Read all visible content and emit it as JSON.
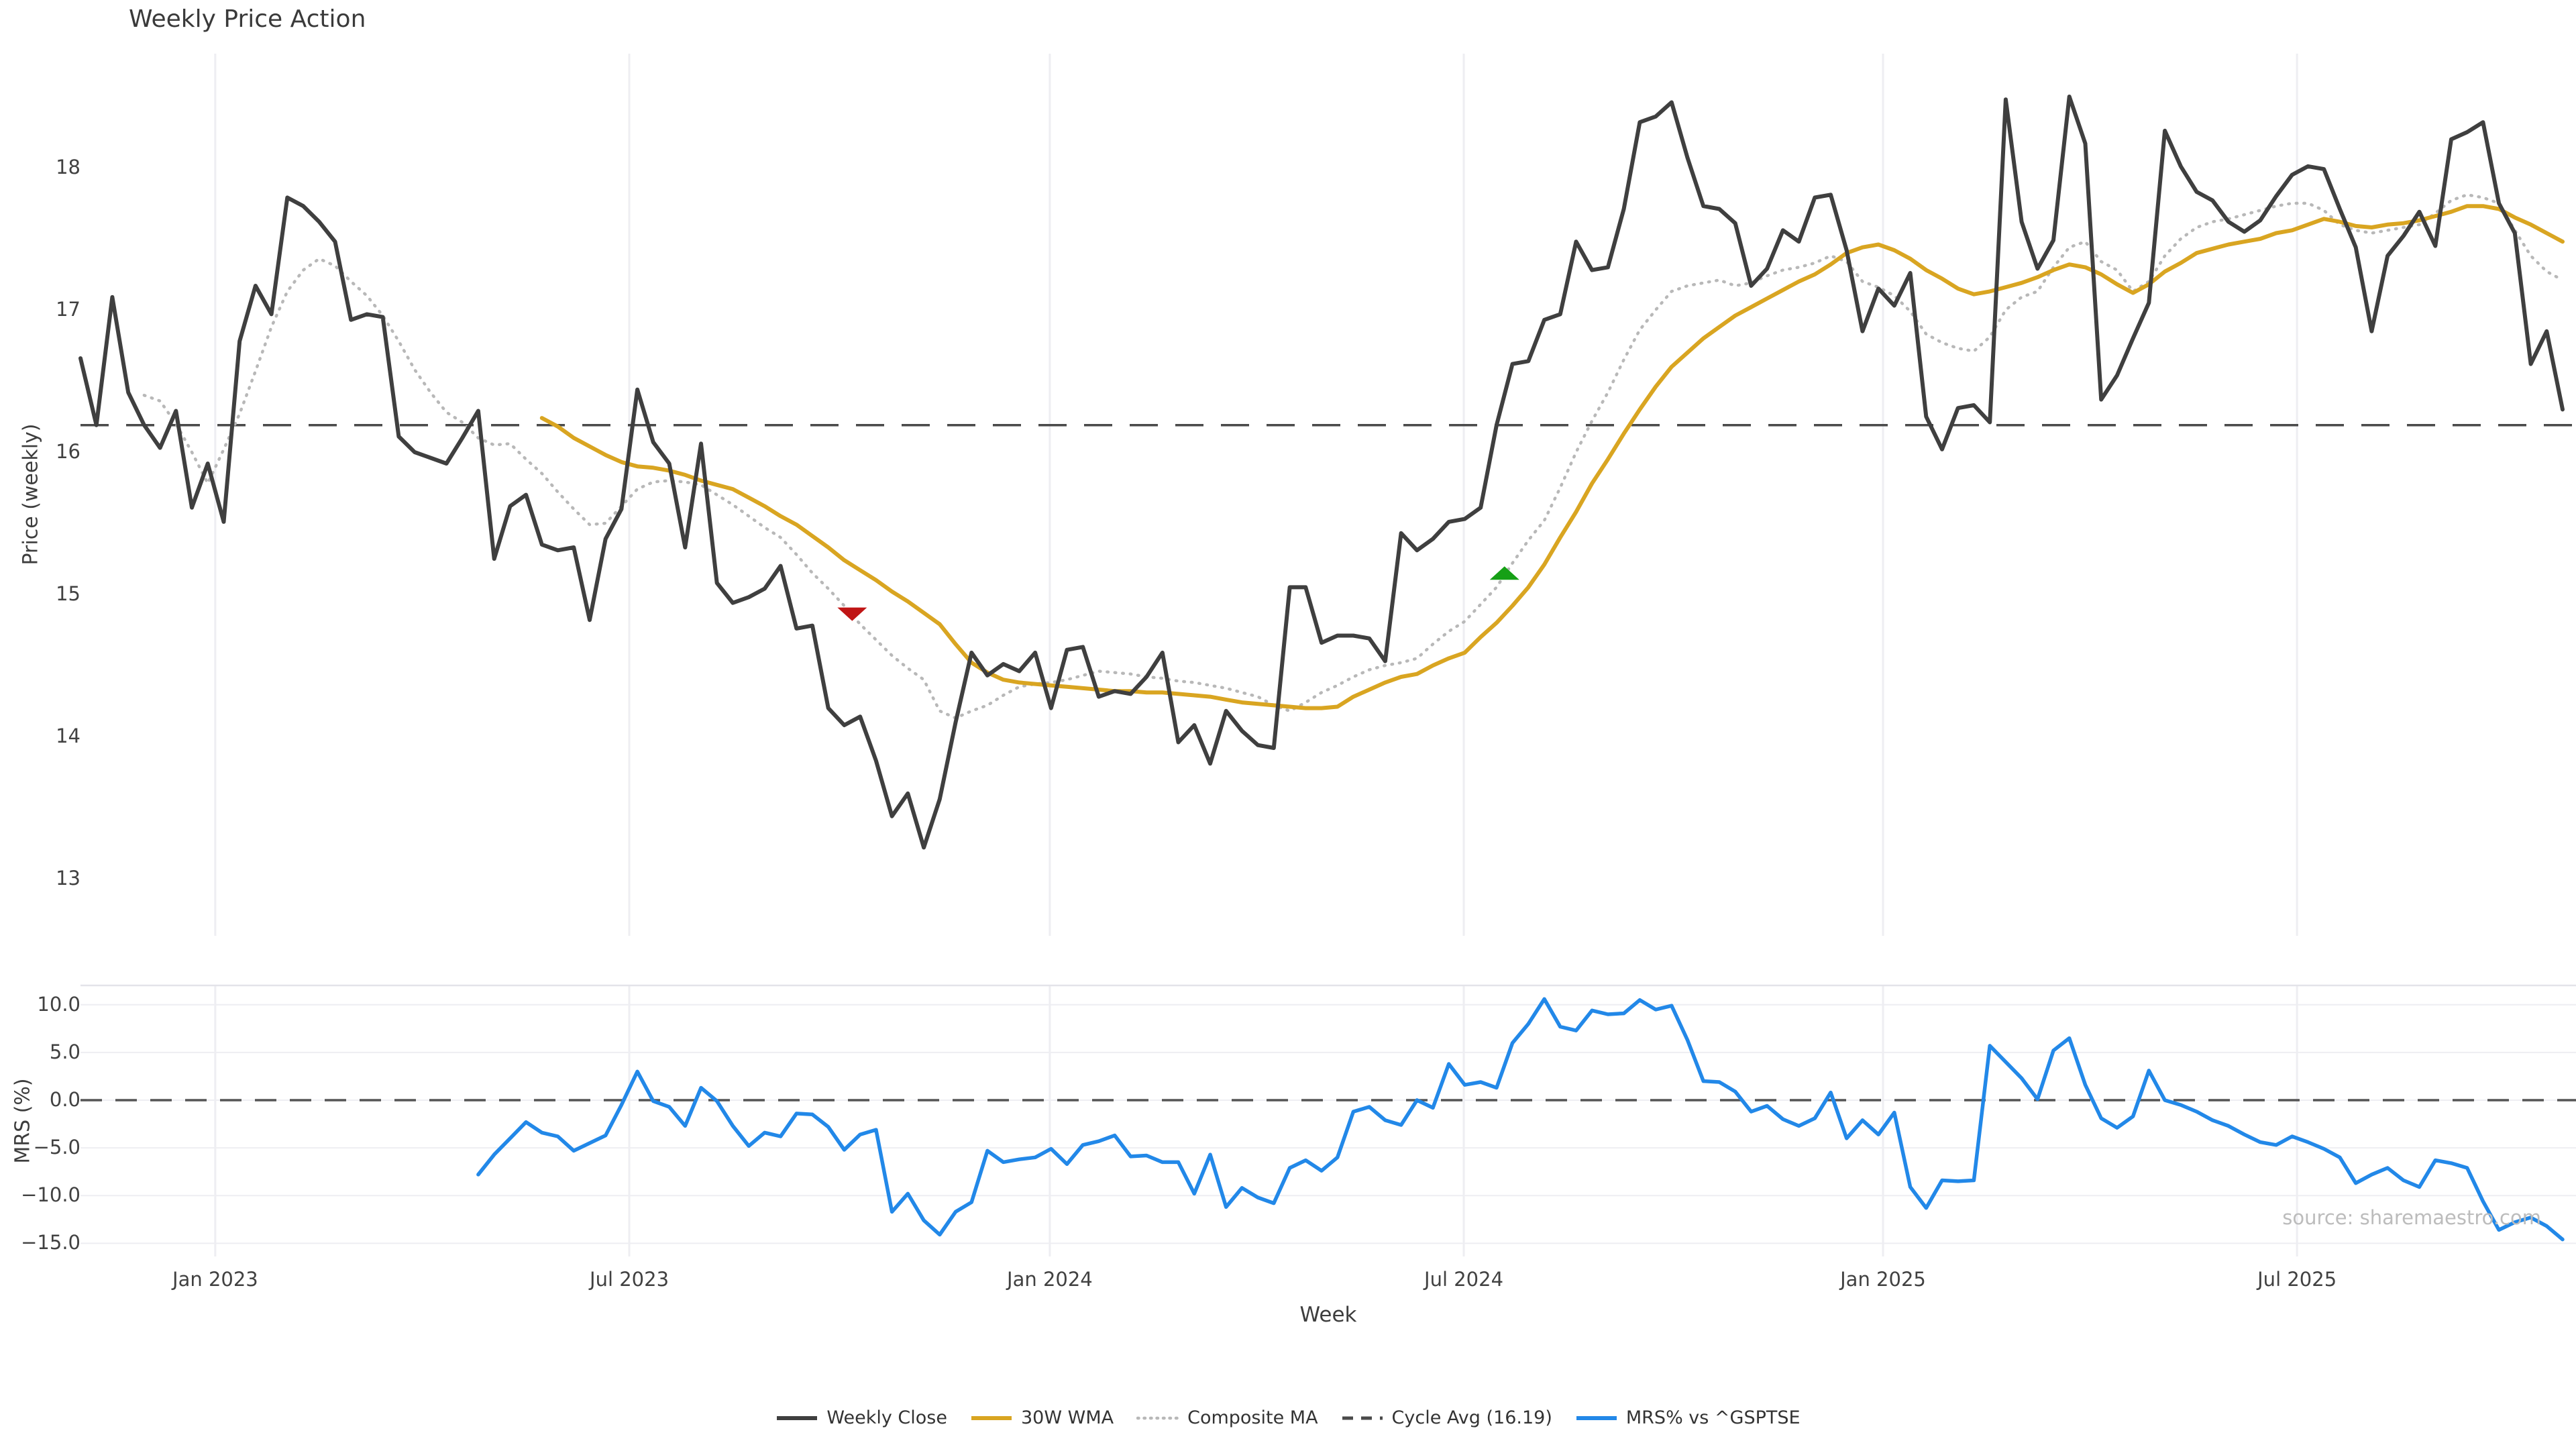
{
  "title": "Weekly Price Action",
  "xlabel": "Week",
  "source_text": "source: sharemaestro.com",
  "price_panel": {
    "ylabel": "Price (weekly)",
    "yticks": [
      "13",
      "14",
      "15",
      "16",
      "17",
      "18"
    ],
    "ytick_values": [
      13,
      14,
      15,
      16,
      17,
      18
    ]
  },
  "mrs_panel": {
    "ylabel": "MRS (%)",
    "yticks": [
      "10.0",
      "5.0",
      "0.0",
      "−5.0",
      "−10.0",
      "−15.0"
    ],
    "ytick_values": [
      10,
      5,
      0,
      -5,
      -10,
      -15
    ]
  },
  "x_ticks": [
    {
      "label": "Jan 2023",
      "index": 8.47
    },
    {
      "label": "Jul 2023",
      "index": 34.49
    },
    {
      "label": "Jan 2024",
      "index": 60.92
    },
    {
      "label": "Jul 2024",
      "index": 86.94
    },
    {
      "label": "Jan 2025",
      "index": 113.29
    },
    {
      "label": "Jul 2025",
      "index": 139.31
    }
  ],
  "legend": [
    {
      "label": "Weekly Close",
      "color": "#3f3f3f",
      "style": "solid"
    },
    {
      "label": "30W WMA",
      "color": "#d9a521",
      "style": "solid"
    },
    {
      "label": "Composite MA",
      "color": "#b8b8b8",
      "style": "dotted"
    },
    {
      "label": "Cycle Avg (16.19)",
      "color": "#4a4a4a",
      "style": "dashed"
    },
    {
      "label": "MRS% vs ^GSPTSE",
      "color": "#2288e8",
      "style": "solid"
    }
  ],
  "colors": {
    "weekly_close": "#3f3f3f",
    "wma_30w": "#d9a521",
    "composite_ma": "#b8b8b8",
    "cycle_avg": "#4a4a4a",
    "mrs": "#2288e8",
    "sell_marker": "#c01515",
    "buy_marker": "#16a016",
    "gridline": "#eeeef2",
    "panel_border": "#e3e3e9"
  },
  "chart_data": {
    "type": "line",
    "x_start_week": "2022-11-07",
    "x_interval": "weekly",
    "n_weeks": 157,
    "title": "Weekly Price Action",
    "xlabel": "Week",
    "panels": [
      {
        "ylabel": "Price (weekly)",
        "ylim": [
          12.6,
          18.8
        ],
        "grid": "vertical-only"
      },
      {
        "ylabel": "MRS (%)",
        "ylim": [
          -16.4,
          12.0
        ],
        "grid": "both",
        "zero_line": true
      }
    ],
    "cycle_avg_value": 16.19,
    "legend_position": "bottom-center",
    "series": [
      {
        "name": "Weekly Close",
        "panel": 0,
        "values": [
          16.66,
          16.19,
          17.09,
          16.42,
          16.19,
          16.03,
          16.29,
          15.61,
          15.92,
          15.51,
          16.78,
          17.17,
          16.97,
          17.79,
          17.73,
          17.62,
          17.48,
          16.93,
          16.97,
          16.95,
          16.11,
          16.0,
          15.96,
          15.92,
          16.1,
          16.29,
          15.25,
          15.62,
          15.7,
          15.35,
          15.31,
          15.33,
          14.82,
          15.39,
          15.6,
          16.44,
          16.07,
          15.92,
          15.33,
          16.06,
          15.08,
          14.94,
          14.98,
          15.04,
          15.2,
          14.76,
          14.78,
          14.2,
          14.08,
          14.14,
          13.83,
          13.44,
          13.6,
          13.22,
          13.56,
          14.1,
          14.59,
          14.43,
          14.51,
          14.46,
          14.59,
          14.2,
          14.61,
          14.63,
          14.28,
          14.32,
          14.3,
          14.42,
          14.59,
          13.96,
          14.08,
          13.81,
          14.18,
          14.04,
          13.94,
          13.92,
          15.05,
          15.05,
          14.66,
          14.71,
          14.71,
          14.69,
          14.53,
          15.43,
          15.31,
          15.39,
          15.51,
          15.53,
          15.61,
          16.19,
          16.62,
          16.64,
          16.93,
          16.97,
          17.48,
          17.28,
          17.3,
          17.71,
          18.32,
          18.36,
          18.46,
          18.07,
          17.73,
          17.71,
          17.61,
          17.17,
          17.29,
          17.56,
          17.48,
          17.79,
          17.81,
          17.42,
          16.85,
          17.15,
          17.03,
          17.26,
          16.25,
          16.02,
          16.31,
          16.33,
          16.21,
          18.48,
          17.62,
          17.29,
          17.49,
          18.5,
          18.17,
          16.37,
          16.54,
          16.8,
          17.05,
          18.26,
          18.01,
          17.83,
          17.77,
          17.62,
          17.55,
          17.63,
          17.8,
          17.95,
          18.01,
          17.99,
          17.71,
          17.44,
          16.85,
          17.38,
          17.52,
          17.69,
          17.45,
          18.2,
          18.25,
          18.32,
          17.75,
          17.54,
          16.62,
          16.85,
          16.3
        ]
      },
      {
        "name": "30W WMA",
        "panel": 0,
        "values": [
          null,
          null,
          null,
          null,
          null,
          null,
          null,
          null,
          null,
          null,
          null,
          null,
          null,
          null,
          null,
          null,
          null,
          null,
          null,
          null,
          null,
          null,
          null,
          null,
          null,
          null,
          null,
          null,
          null,
          16.24,
          16.18,
          16.1,
          16.04,
          15.98,
          15.93,
          15.9,
          15.89,
          15.87,
          15.84,
          15.8,
          15.77,
          15.74,
          15.68,
          15.62,
          15.55,
          15.49,
          15.41,
          15.33,
          15.24,
          15.17,
          15.1,
          15.02,
          14.95,
          14.87,
          14.79,
          14.65,
          14.52,
          14.45,
          14.4,
          14.38,
          14.37,
          14.36,
          14.35,
          14.34,
          14.33,
          14.32,
          14.32,
          14.31,
          14.31,
          14.3,
          14.29,
          14.28,
          14.26,
          14.24,
          14.23,
          14.22,
          14.21,
          14.2,
          14.2,
          14.21,
          14.28,
          14.33,
          14.38,
          14.42,
          14.44,
          14.5,
          14.55,
          14.59,
          14.7,
          14.8,
          14.92,
          15.05,
          15.21,
          15.4,
          15.58,
          15.78,
          15.95,
          16.13,
          16.3,
          16.46,
          16.6,
          16.7,
          16.8,
          16.88,
          16.96,
          17.02,
          17.08,
          17.14,
          17.2,
          17.25,
          17.32,
          17.4,
          17.44,
          17.46,
          17.42,
          17.36,
          17.28,
          17.22,
          17.15,
          17.11,
          17.13,
          17.16,
          17.19,
          17.23,
          17.28,
          17.32,
          17.3,
          17.25,
          17.18,
          17.12,
          17.18,
          17.27,
          17.33,
          17.4,
          17.43,
          17.46,
          17.48,
          17.5,
          17.54,
          17.56,
          17.6,
          17.64,
          17.62,
          17.59,
          17.58,
          17.6,
          17.61,
          17.63,
          17.66,
          17.69,
          17.73,
          17.73,
          17.71,
          17.65,
          17.6,
          17.54,
          17.48
        ]
      },
      {
        "name": "Composite MA",
        "panel": 0,
        "values": [
          null,
          null,
          null,
          null,
          16.4,
          16.36,
          16.2,
          16.0,
          15.78,
          16.02,
          16.27,
          16.57,
          16.88,
          17.13,
          17.28,
          17.36,
          17.31,
          17.2,
          17.1,
          16.96,
          16.78,
          16.58,
          16.42,
          16.28,
          16.21,
          16.1,
          16.05,
          16.06,
          15.95,
          15.85,
          15.72,
          15.6,
          15.49,
          15.5,
          15.62,
          15.74,
          15.79,
          15.8,
          15.79,
          15.77,
          15.7,
          15.63,
          15.55,
          15.47,
          15.4,
          15.28,
          15.15,
          15.04,
          14.92,
          14.79,
          14.68,
          14.57,
          14.48,
          14.4,
          14.18,
          14.13,
          14.18,
          14.22,
          14.29,
          14.35,
          14.37,
          14.38,
          14.4,
          14.43,
          14.46,
          14.45,
          14.44,
          14.42,
          14.41,
          14.39,
          14.38,
          14.36,
          14.34,
          14.31,
          14.28,
          14.22,
          14.18,
          14.24,
          14.31,
          14.36,
          14.42,
          14.47,
          14.5,
          14.52,
          14.55,
          14.65,
          14.74,
          14.81,
          14.93,
          15.05,
          15.22,
          15.38,
          15.52,
          15.75,
          16.0,
          16.22,
          16.42,
          16.65,
          16.86,
          17.0,
          17.13,
          17.17,
          17.19,
          17.21,
          17.17,
          17.19,
          17.24,
          17.28,
          17.3,
          17.33,
          17.38,
          17.34,
          17.2,
          17.16,
          17.1,
          16.99,
          16.83,
          16.77,
          16.73,
          16.71,
          16.81,
          17.0,
          17.09,
          17.13,
          17.3,
          17.44,
          17.48,
          17.34,
          17.28,
          17.13,
          17.2,
          17.38,
          17.5,
          17.58,
          17.62,
          17.64,
          17.67,
          17.7,
          17.73,
          17.75,
          17.75,
          17.7,
          17.6,
          17.56,
          17.54,
          17.56,
          17.58,
          17.6,
          17.68,
          17.77,
          17.81,
          17.79,
          17.75,
          17.56,
          17.38,
          17.27,
          17.21
        ]
      },
      {
        "name": "Cycle Avg (16.19)",
        "panel": 0,
        "constant": 16.19
      },
      {
        "name": "MRS% vs ^GSPTSE",
        "panel": 1,
        "values": [
          null,
          null,
          null,
          null,
          null,
          null,
          null,
          null,
          null,
          null,
          null,
          null,
          null,
          null,
          null,
          null,
          null,
          null,
          null,
          null,
          null,
          null,
          null,
          null,
          null,
          -7.8,
          -5.7,
          -4.0,
          -2.3,
          -3.4,
          -3.8,
          -5.3,
          -4.5,
          -3.7,
          -0.5,
          3.0,
          -0.1,
          -0.7,
          -2.7,
          1.3,
          -0.1,
          -2.7,
          -4.8,
          -3.4,
          -3.8,
          -1.4,
          -1.5,
          -2.8,
          -5.2,
          -3.6,
          -3.1,
          -11.7,
          -9.8,
          -12.6,
          -14.1,
          -11.7,
          -10.7,
          -5.3,
          -6.5,
          -6.2,
          -6.0,
          -5.1,
          -6.7,
          -4.7,
          -4.3,
          -3.7,
          -5.9,
          -5.8,
          -6.5,
          -6.5,
          -9.8,
          -5.7,
          -11.2,
          -9.2,
          -10.2,
          -10.8,
          -7.1,
          -6.3,
          -7.4,
          -6.0,
          -1.2,
          -0.7,
          -2.1,
          -2.6,
          0.0,
          -0.8,
          3.8,
          1.6,
          1.9,
          1.3,
          6.0,
          8.0,
          10.6,
          7.7,
          7.3,
          9.4,
          9.0,
          9.1,
          10.5,
          9.5,
          9.9,
          6.3,
          2.0,
          1.9,
          0.9,
          -1.2,
          -0.6,
          -2.0,
          -2.7,
          -1.9,
          0.8,
          -4.0,
          -2.1,
          -3.6,
          -1.3,
          -9.1,
          -11.3,
          -8.4,
          -8.5,
          -8.4,
          5.7,
          4.0,
          2.3,
          0.1,
          5.2,
          6.5,
          1.6,
          -1.9,
          -2.9,
          -1.7,
          3.1,
          0.0,
          -0.5,
          -1.2,
          -2.1,
          -2.7,
          -3.6,
          -4.4,
          -4.7,
          -3.8,
          -4.4,
          -5.1,
          -6.0,
          -8.7,
          -7.8,
          -7.1,
          -8.4,
          -9.1,
          -6.3,
          -6.6,
          -7.1,
          -10.6,
          -13.6,
          -12.8,
          -12.3,
          -13.2,
          -14.6
        ]
      }
    ],
    "markers": [
      {
        "type": "sell-triangle-down",
        "color": "#c01515",
        "index": 48.5,
        "value": 14.86
      },
      {
        "type": "buy-triangle-up",
        "color": "#16a016",
        "index": 89.5,
        "value": 15.15
      }
    ]
  }
}
